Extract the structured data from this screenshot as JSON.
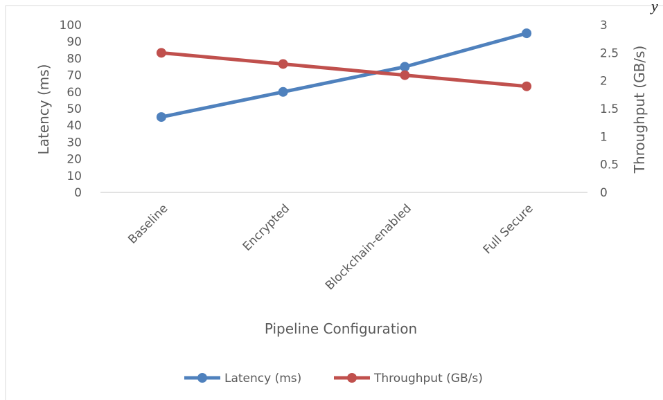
{
  "corner_mark": "y",
  "chart_data": {
    "type": "line",
    "categories": [
      "Baseline",
      "Encrypted",
      "Blockchain-enabled",
      "Full Secure"
    ],
    "xlabel": "Pipeline Configuration",
    "ylabel": "Latency (ms)",
    "y2label": "Throughput (GB/s)",
    "ylim": [
      0,
      100
    ],
    "y2lim": [
      0,
      3
    ],
    "yticks": [
      "0",
      "10",
      "20",
      "30",
      "40",
      "50",
      "60",
      "70",
      "80",
      "90",
      "100"
    ],
    "y2ticks": [
      "0",
      "0.5",
      "1",
      "1.5",
      "2",
      "2.5",
      "3"
    ],
    "grid": false,
    "legend_position": "bottom",
    "series": [
      {
        "name": "Latency (ms)",
        "axis": "left",
        "color": "#4F81BD",
        "values": [
          45,
          60,
          75,
          95
        ]
      },
      {
        "name": "Throughput (GB/s)",
        "axis": "right",
        "color": "#C0504D",
        "values": [
          2.5,
          2.3,
          2.1,
          1.9
        ]
      }
    ]
  }
}
